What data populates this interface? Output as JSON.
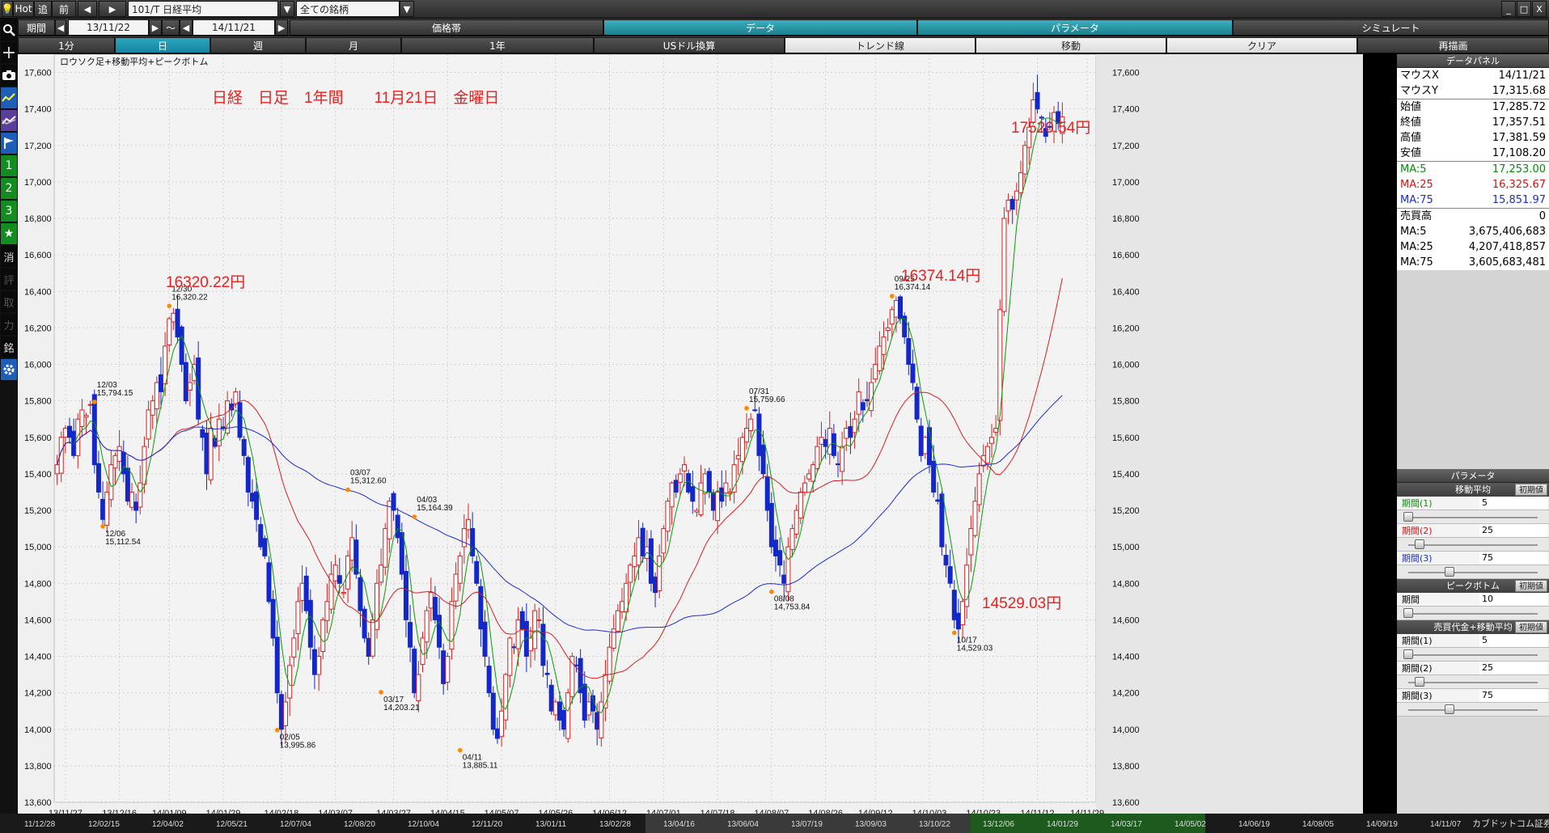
{
  "toolbar": {
    "hot": "Hot",
    "tsui": "追",
    "mae": "前",
    "symbol": "101/T 日経平均",
    "all_symbols": "全ての銘柄",
    "minimize": "_",
    "restore": "□",
    "close": "X"
  },
  "period": {
    "label": "期間",
    "from": "13/11/22",
    "tilde": "～",
    "to": "14/11/21"
  },
  "tabs": {
    "kakakutai": "価格帯",
    "data": "データ",
    "parameter": "パラメータ",
    "simulate": "シミュレート"
  },
  "timeframes": [
    "1分",
    "日",
    "週",
    "月",
    "1年"
  ],
  "tools": {
    "usd": "USドル換算",
    "trend": "トレンド線",
    "move": "移動",
    "clear": "クリア",
    "redraw": "再描画"
  },
  "left_icons": [
    "search-icon",
    "crosshair-icon",
    "camera-icon",
    "line-chart-icon",
    "compare-chart-icon",
    "flag-icon",
    "1",
    "2",
    "3",
    "★",
    "消",
    "評",
    "取",
    "力",
    "銘",
    "gear-icon"
  ],
  "plot_title": "ロウソク足+移動平均+ピークボトム",
  "caption": "日経　日足　1年間　　11月21日　金曜日",
  "callouts": [
    {
      "text": "16320.22円"
    },
    {
      "text": "16374.14円"
    },
    {
      "text": "17520.54円"
    },
    {
      "text": "14529.03円"
    }
  ],
  "data_panel": {
    "title": "データパネル",
    "rows": [
      {
        "label": "マウスX",
        "value": "14/11/21",
        "color": "#000000"
      },
      {
        "label": "マウスY",
        "value": "17,315.68",
        "color": "#000000"
      },
      {
        "label": "始値",
        "value": "17,285.72",
        "color": "#000000"
      },
      {
        "label": "終値",
        "value": "17,357.51",
        "color": "#000000"
      },
      {
        "label": "高値",
        "value": "17,381.59",
        "color": "#000000"
      },
      {
        "label": "安値",
        "value": "17,108.20",
        "color": "#000000"
      },
      {
        "label": "MA:5",
        "value": "17,253.00",
        "color": "#0a8a0a"
      },
      {
        "label": "MA:25",
        "value": "16,325.67",
        "color": "#d21414"
      },
      {
        "label": "MA:75",
        "value": "15,851.97",
        "color": "#1c2ed0"
      },
      {
        "label": "売買高",
        "value": "0",
        "color": "#000000"
      },
      {
        "label": "MA:5",
        "value": "3,675,406,683",
        "color": "#000000"
      },
      {
        "label": "MA:25",
        "value": "4,207,418,857",
        "color": "#000000"
      },
      {
        "label": "MA:75",
        "value": "3,605,683,481",
        "color": "#000000"
      }
    ]
  },
  "param_panel": {
    "title": "パラメータ",
    "ma_head": "移動平均",
    "reset": "初期値",
    "ma": [
      {
        "label": "期間(1)",
        "value": "5",
        "color": "#0a8a0a",
        "knob": 0.0
      },
      {
        "label": "期間(2)",
        "value": "25",
        "color": "#d21414",
        "knob": 0.09
      },
      {
        "label": "期間(3)",
        "value": "75",
        "color": "#1c2ed0",
        "knob": 0.34
      }
    ],
    "peak_head": "ピークボトム",
    "peak": {
      "label": "期間",
      "value": "10",
      "knob": 0.0
    },
    "vol_head": "売買代金+移動平均",
    "vol": [
      {
        "label": "期間(1)",
        "value": "5",
        "knob": 0.0
      },
      {
        "label": "期間(2)",
        "value": "25",
        "knob": 0.09
      },
      {
        "label": "期間(3)",
        "value": "75",
        "knob": 0.34
      }
    ]
  },
  "bottom_dates": [
    "11/12/28",
    "12/02/15",
    "12/04/02",
    "12/05/21",
    "12/07/04",
    "12/08/20",
    "12/10/04",
    "12/11/20",
    "13/01/11",
    "13/02/28",
    "13/04/16",
    "13/06/04",
    "13/07/19",
    "13/09/03",
    "13/10/22",
    "13/12/06",
    "14/01/29",
    "14/03/17",
    "14/05/02",
    "14/06/19",
    "14/08/05",
    "14/09/19",
    "14/11/07"
  ],
  "brand": "カブドットコム証券",
  "chart_data": {
    "type": "candlestick",
    "title": "ロウソク足+移動平均+ピークボトム",
    "ylim": [
      13600,
      17700
    ],
    "yticks": [
      13600,
      13800,
      14000,
      14200,
      14400,
      14600,
      14800,
      15000,
      15200,
      15400,
      15600,
      15800,
      16000,
      16200,
      16400,
      16600,
      16800,
      17000,
      17200,
      17400,
      17600
    ],
    "ytick_labels": [
      "13,600",
      "13,800",
      "14,000",
      "14,200",
      "14,400",
      "14,600",
      "14,800",
      "15,000",
      "15,200",
      "15,400",
      "15,600",
      "15,800",
      "16,000",
      "16,200",
      "16,400",
      "16,600",
      "16,800",
      "17,000",
      "17,200",
      "17,400",
      "17,600"
    ],
    "x_range": [
      "13/11/22",
      "14/11/21"
    ],
    "xticks": [
      {
        "label": "13/11/27",
        "i": 2
      },
      {
        "label": "13/12/16",
        "i": 15
      },
      {
        "label": "14/01/09",
        "i": 27
      },
      {
        "label": "14/01/29",
        "i": 40
      },
      {
        "label": "14/02/18",
        "i": 54
      },
      {
        "label": "14/03/07",
        "i": 67
      },
      {
        "label": "14/03/27",
        "i": 81
      },
      {
        "label": "14/04/15",
        "i": 94
      },
      {
        "label": "14/05/07",
        "i": 107
      },
      {
        "label": "14/05/26",
        "i": 120
      },
      {
        "label": "14/06/12",
        "i": 133
      },
      {
        "label": "14/07/01",
        "i": 146
      },
      {
        "label": "14/07/18",
        "i": 159
      },
      {
        "label": "14/08/07",
        "i": 172
      },
      {
        "label": "14/08/26",
        "i": 185
      },
      {
        "label": "14/09/12",
        "i": 197
      },
      {
        "label": "14/10/03",
        "i": 210
      },
      {
        "label": "14/10/23",
        "i": 223
      },
      {
        "label": "14/11/12",
        "i": 236
      },
      {
        "label": "14/11/29",
        "i": 248
      }
    ],
    "closes": [
      15450,
      15600,
      15650,
      15600,
      15500,
      15700,
      15750,
      15720,
      15780,
      15450,
      15300,
      15150,
      15300,
      15450,
      15500,
      15550,
      15400,
      15250,
      15300,
      15200,
      15350,
      15550,
      15750,
      15800,
      15900,
      15850,
      16100,
      16250,
      16280,
      16150,
      16000,
      15800,
      15900,
      16000,
      15700,
      15600,
      15400,
      15650,
      15550,
      15700,
      15650,
      15800,
      15750,
      15850,
      15600,
      15500,
      15300,
      15250,
      15150,
      15000,
      14950,
      14700,
      14500,
      14200,
      14000,
      14150,
      14350,
      14500,
      14700,
      14800,
      14650,
      14450,
      14300,
      14400,
      14600,
      14700,
      14850,
      14900,
      14800,
      14750,
      14950,
      15050,
      14850,
      14650,
      14500,
      14400,
      14600,
      14800,
      14900,
      15100,
      15250,
      15200,
      15050,
      14850,
      14600,
      14450,
      14200,
      14300,
      14500,
      14650,
      14750,
      14600,
      14450,
      14250,
      14400,
      14700,
      14850,
      14950,
      15100,
      15150,
      14950,
      14800,
      14550,
      14400,
      14200,
      14000,
      13950,
      14100,
      14300,
      14500,
      14450,
      14600,
      14550,
      14400,
      14500,
      14650,
      14600,
      14350,
      14300,
      14100,
      14150,
      14050,
      14000,
      14200,
      14400,
      14350,
      14200,
      14050,
      14150,
      14100,
      14000,
      14150,
      14300,
      14450,
      14550,
      14650,
      14700,
      14800,
      14900,
      14950,
      15050,
      14950,
      15000,
      14800,
      14750,
      14950,
      15100,
      15250,
      15350,
      15300,
      15400,
      15450,
      15300,
      15250,
      15200,
      15350,
      15400,
      15300,
      15200,
      15300,
      15250,
      15350,
      15300,
      15450,
      15500,
      15600,
      15650,
      15700,
      15750,
      15500,
      15400,
      15200,
      15000,
      14950,
      14900,
      14800,
      15000,
      15100,
      15200,
      15300,
      15350,
      15400,
      15450,
      15550,
      15600,
      15550,
      15650,
      15500,
      15450,
      15550,
      15650,
      15600,
      15700,
      15850,
      15750,
      15800,
      15900,
      16000,
      16100,
      16150,
      16200,
      16300,
      16350,
      16250,
      16150,
      16000,
      15900,
      15700,
      15500,
      15600,
      15450,
      15300,
      15250,
      15000,
      14900,
      14800,
      14600,
      14550,
      14700,
      14900,
      15100,
      15250,
      15400,
      15500,
      15550,
      15600,
      15650,
      16300,
      16800,
      16900,
      16850,
      16950,
      17050,
      17200,
      17300,
      17450,
      17400,
      17350,
      17250,
      17300,
      17380,
      17320,
      17357
    ],
    "ma5_closes_note": "",
    "peaks": [
      {
        "i": 9,
        "v": 15794.15,
        "label": "12/03\n15,794.15",
        "pos": "above"
      },
      {
        "i": 11,
        "v": 15112.54,
        "label": "12/06\n15,112.54",
        "pos": "below"
      },
      {
        "i": 27,
        "v": 16320.22,
        "label": "12/30\n16,320.22",
        "pos": "above"
      },
      {
        "i": 53,
        "v": 13995.86,
        "label": "02/05\n13,995.86",
        "pos": "below"
      },
      {
        "i": 70,
        "v": 15312.6,
        "label": "03/07\n15,312.60",
        "pos": "above"
      },
      {
        "i": 78,
        "v": 14203.21,
        "label": "03/17\n14,203.21",
        "pos": "below"
      },
      {
        "i": 86,
        "v": 15164.39,
        "label": "04/03\n15,164.39",
        "pos": "above"
      },
      {
        "i": 97,
        "v": 13885.11,
        "label": "04/11\n13,885.11",
        "pos": "below"
      },
      {
        "i": 166,
        "v": 15759.66,
        "label": "07/31\n15,759.66",
        "pos": "above"
      },
      {
        "i": 172,
        "v": 14753.84,
        "label": "08/08\n14,753.84",
        "pos": "below"
      },
      {
        "i": 201,
        "v": 16374.14,
        "label": "09/25\n16,374.14",
        "pos": "above"
      },
      {
        "i": 216,
        "v": 14529.03,
        "label": "10/17\n14,529.03",
        "pos": "below"
      }
    ]
  }
}
